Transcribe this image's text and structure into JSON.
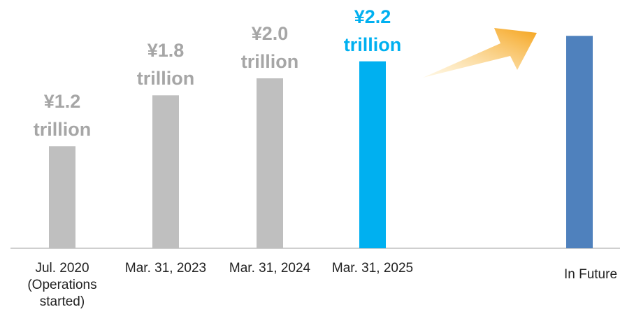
{
  "chart_data": {
    "type": "bar",
    "categories": [
      "Jul. 2020 (Operations started)",
      "Mar. 31, 2023",
      "Mar. 31, 2024",
      "Mar. 31, 2025",
      "In Future"
    ],
    "values": [
      1.2,
      1.8,
      2.0,
      2.2,
      2.5
    ],
    "value_labels": [
      "¥1.2 trillion",
      "¥1.8 trillion",
      "¥2.0 trillion",
      "¥2.2 trillion",
      null
    ],
    "colors": [
      "#bfbfbf",
      "#bfbfbf",
      "#bfbfbf",
      "#00b0f0",
      "#4f81bd"
    ],
    "label_colors": [
      "#a6a6a6",
      "#a6a6a6",
      "#a6a6a6",
      "#00b0f0",
      null
    ]
  }
}
